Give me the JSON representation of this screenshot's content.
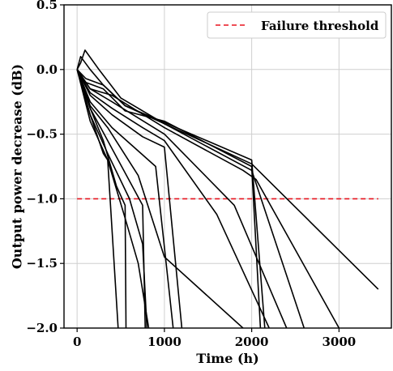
{
  "chart_data": {
    "type": "line",
    "title": "",
    "xlabel": "Time (h)",
    "ylabel": "Output power decrease (dB)",
    "xlim": [
      -150,
      3600
    ],
    "ylim": [
      -2.0,
      0.5
    ],
    "xticks": [
      0,
      1000,
      2000,
      3000
    ],
    "xtick_labels": [
      "0",
      "1000",
      "2000",
      "3000"
    ],
    "yticks": [
      0.5,
      0.0,
      -0.5,
      -1.0,
      -1.5,
      -2.0
    ],
    "ytick_labels": [
      "0.5",
      "0.0",
      "−0.5",
      "−1.0",
      "−1.5",
      "−2.0"
    ],
    "grid": true,
    "legend_position": "top-right",
    "threshold": {
      "name": "Failure threshold",
      "y": -1.0,
      "x_range": [
        0,
        3450
      ],
      "color": "#e8141e",
      "style": "dashed"
    },
    "line_color": "#000000",
    "series": [
      {
        "x": [
          0,
          40,
          90,
          250,
          500,
          1000,
          2000,
          3450
        ],
        "y": [
          0.0,
          0.05,
          0.15,
          0.0,
          -0.22,
          -0.42,
          -0.73,
          -1.7
        ]
      },
      {
        "x": [
          0,
          40,
          150,
          300,
          550,
          1000,
          2000,
          2600
        ],
        "y": [
          0.0,
          0.1,
          0.0,
          -0.12,
          -0.28,
          -0.42,
          -0.78,
          -2.0
        ]
      },
      {
        "x": [
          0,
          100,
          300,
          550,
          1000,
          2000,
          2150
        ],
        "y": [
          0.0,
          -0.07,
          -0.12,
          -0.28,
          -0.41,
          -0.7,
          -2.0
        ]
      },
      {
        "x": [
          0,
          100,
          300,
          550,
          1000,
          2000,
          2100
        ],
        "y": [
          0.0,
          -0.1,
          -0.15,
          -0.32,
          -0.4,
          -0.75,
          -2.0
        ]
      },
      {
        "x": [
          0,
          150,
          400,
          1000,
          1900,
          2050,
          3000
        ],
        "y": [
          0.0,
          -0.15,
          -0.2,
          -0.45,
          -0.78,
          -0.85,
          -2.0
        ]
      },
      {
        "x": [
          0,
          150,
          400,
          1000,
          1800,
          2400
        ],
        "y": [
          0.0,
          -0.15,
          -0.25,
          -0.5,
          -1.05,
          -2.0
        ]
      },
      {
        "x": [
          0,
          150,
          400,
          750,
          1000,
          1600,
          2200
        ],
        "y": [
          0.0,
          -0.18,
          -0.3,
          -0.45,
          -0.55,
          -1.12,
          -2.0
        ]
      },
      {
        "x": [
          0,
          150,
          400,
          750,
          1000,
          1200
        ],
        "y": [
          0.0,
          -0.2,
          -0.35,
          -0.52,
          -0.6,
          -2.0
        ]
      },
      {
        "x": [
          0,
          150,
          400,
          900,
          1100
        ],
        "y": [
          0.0,
          -0.25,
          -0.45,
          -0.75,
          -2.0
        ]
      },
      {
        "x": [
          0,
          150,
          350,
          700,
          1000,
          1900
        ],
        "y": [
          0.0,
          -0.28,
          -0.45,
          -0.82,
          -1.45,
          -2.0
        ]
      },
      {
        "x": [
          0,
          150,
          350,
          750,
          780
        ],
        "y": [
          0.0,
          -0.3,
          -0.55,
          -1.05,
          -2.0
        ]
      },
      {
        "x": [
          0,
          150,
          350,
          600,
          750,
          800
        ],
        "y": [
          0.0,
          -0.35,
          -0.65,
          -1.0,
          -1.35,
          -2.0
        ]
      },
      {
        "x": [
          0,
          150,
          350,
          550,
          700,
          820
        ],
        "y": [
          0.0,
          -0.4,
          -0.7,
          -1.15,
          -1.5,
          -2.0
        ]
      },
      {
        "x": [
          0,
          150,
          300,
          450,
          550,
          560
        ],
        "y": [
          0.0,
          -0.3,
          -0.55,
          -0.9,
          -1.05,
          -2.0
        ]
      },
      {
        "x": [
          0,
          150,
          300,
          350,
          470
        ],
        "y": [
          0.0,
          -0.35,
          -0.65,
          -0.7,
          -2.0
        ]
      }
    ]
  }
}
